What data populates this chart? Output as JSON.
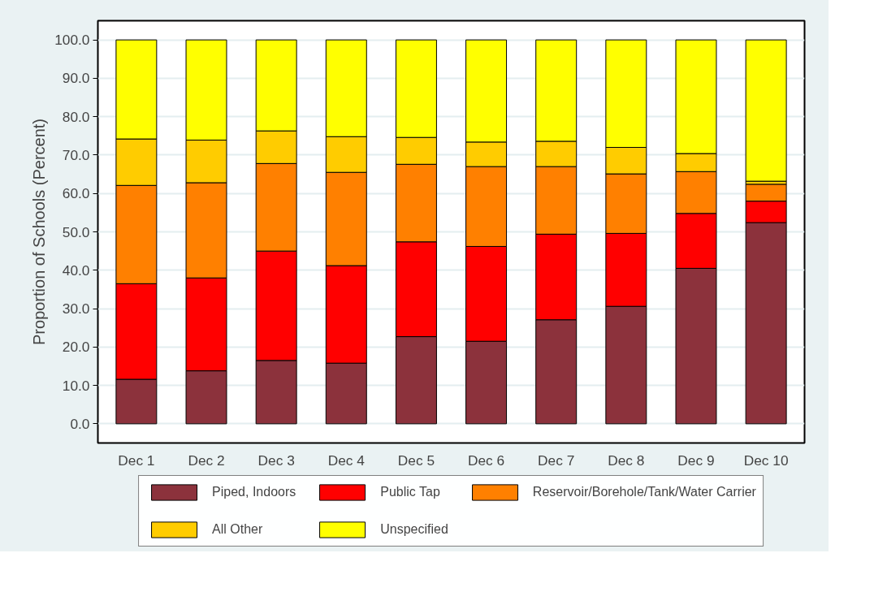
{
  "chart_data": {
    "type": "bar",
    "stacked": true,
    "ylabel": "Proportion of Schools (Percent)",
    "categories": [
      "Dec 1",
      "Dec 2",
      "Dec 3",
      "Dec 4",
      "Dec 5",
      "Dec 6",
      "Dec 7",
      "Dec 8",
      "Dec 9",
      "Dec 10"
    ],
    "series": [
      {
        "name": "Piped, Indoors",
        "color": "#8c323c",
        "values": [
          11.6,
          13.8,
          16.5,
          15.8,
          22.7,
          21.5,
          27.1,
          30.6,
          40.5,
          52.4
        ]
      },
      {
        "name": "Public Tap",
        "color": "#ff0000",
        "values": [
          24.9,
          24.2,
          28.5,
          25.4,
          24.7,
          24.7,
          22.3,
          19.0,
          14.3,
          5.6
        ]
      },
      {
        "name": "Reservoir/Borehole/Tank/Water Carrier",
        "color": "#ff8000",
        "values": [
          25.6,
          24.8,
          22.8,
          24.3,
          20.2,
          20.8,
          17.6,
          15.5,
          10.9,
          4.4
        ]
      },
      {
        "name": "All Other",
        "color": "#ffcc00",
        "values": [
          12.1,
          11.1,
          8.5,
          9.3,
          7.0,
          6.4,
          6.6,
          6.9,
          4.7,
          0.8
        ]
      },
      {
        "name": "Unspecified",
        "color": "#ffff00",
        "values": [
          25.8,
          26.1,
          23.7,
          25.2,
          25.4,
          26.6,
          26.4,
          28.0,
          29.6,
          36.8
        ]
      }
    ],
    "ylim": [
      -5,
      105
    ],
    "yticks": [
      {
        "value": 0,
        "label": "0.0"
      },
      {
        "value": 10,
        "label": "10.0"
      },
      {
        "value": 20,
        "label": "20.0"
      },
      {
        "value": 30,
        "label": "30.0"
      },
      {
        "value": 40,
        "label": "40.0"
      },
      {
        "value": 50,
        "label": "50.0"
      },
      {
        "value": 60,
        "label": "60.0"
      },
      {
        "value": 70,
        "label": "70.0"
      },
      {
        "value": 80,
        "label": "80.0"
      },
      {
        "value": 90,
        "label": "90.0"
      },
      {
        "value": 100,
        "label": "100.0"
      }
    ],
    "grid": "y",
    "legend": "bottom"
  }
}
